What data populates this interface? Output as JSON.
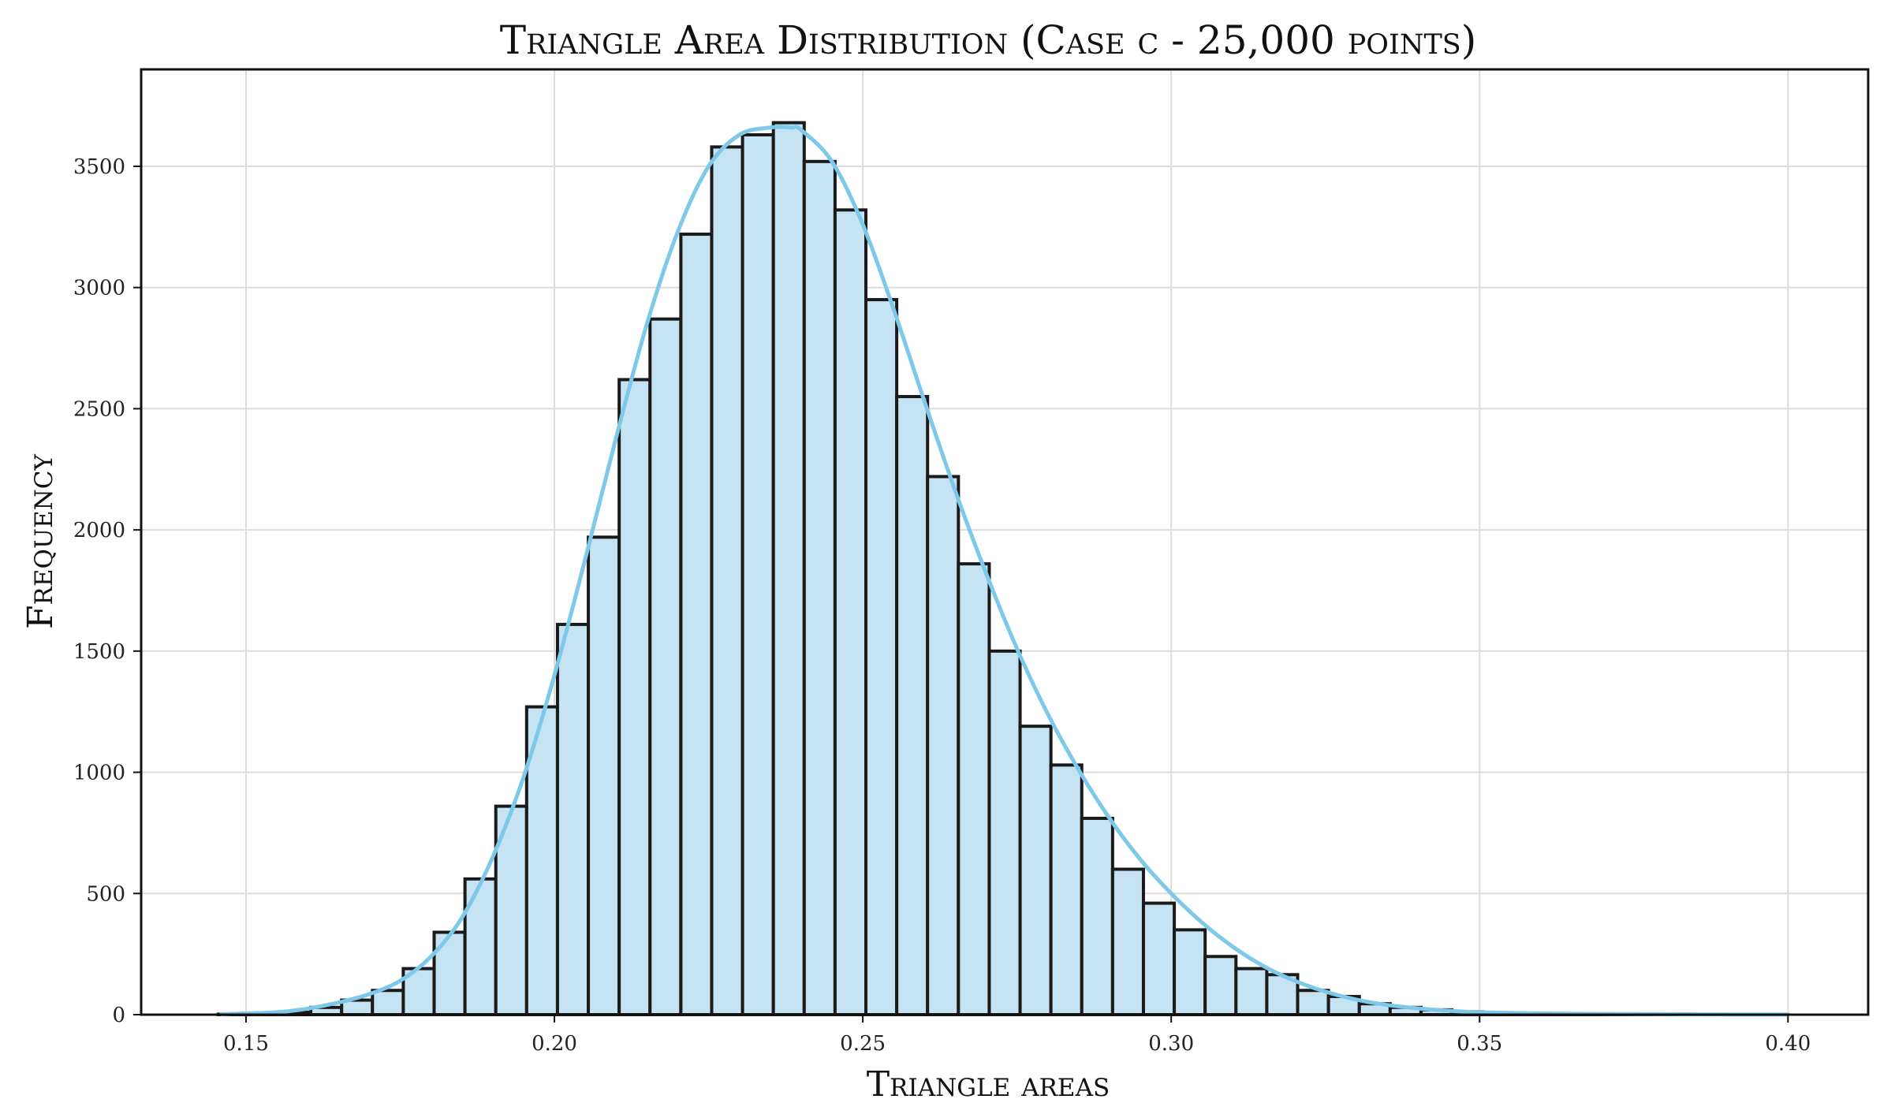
{
  "chart_data": {
    "type": "bar",
    "title": "Triangle Area Distribution (Case c - 25,000 points)",
    "xlabel": "Triangle areas",
    "ylabel": "Frequency",
    "xlim": [
      0.133,
      0.413
    ],
    "ylim": [
      0,
      3900
    ],
    "xticks": [
      0.15,
      0.2,
      0.25,
      0.3,
      0.35,
      0.4
    ],
    "xtick_labels": [
      "0.15",
      "0.20",
      "0.25",
      "0.30",
      "0.35",
      "0.40"
    ],
    "yticks": [
      0,
      500,
      1000,
      1500,
      2000,
      2500,
      3000,
      3500
    ],
    "ytick_labels": [
      "0",
      "500",
      "1000",
      "1500",
      "2000",
      "2500",
      "3000",
      "3500"
    ],
    "grid": true,
    "bin_start": 0.1455,
    "bin_width": 0.005,
    "values": [
      2,
      5,
      10,
      30,
      60,
      100,
      190,
      340,
      560,
      860,
      1270,
      1610,
      1970,
      2620,
      2870,
      3220,
      3580,
      3630,
      3680,
      3520,
      3320,
      2950,
      2550,
      2220,
      1860,
      1500,
      1190,
      1030,
      810,
      600,
      460,
      350,
      240,
      190,
      165,
      100,
      75,
      45,
      30,
      20,
      12,
      8,
      5,
      3,
      3,
      2,
      2,
      1,
      1,
      1
    ],
    "kde": {
      "name": "",
      "color": "#7ec8ea",
      "x": [
        0.146,
        0.155,
        0.16,
        0.165,
        0.17,
        0.175,
        0.18,
        0.185,
        0.19,
        0.195,
        0.2,
        0.205,
        0.21,
        0.215,
        0.22,
        0.225,
        0.23,
        0.235,
        0.2385,
        0.24,
        0.245,
        0.25,
        0.255,
        0.26,
        0.265,
        0.27,
        0.275,
        0.28,
        0.285,
        0.29,
        0.295,
        0.3,
        0.305,
        0.31,
        0.315,
        0.32,
        0.325,
        0.33,
        0.335,
        0.34,
        0.345,
        0.35,
        0.36,
        0.37,
        0.38,
        0.39,
        0.4
      ],
      "y": [
        2,
        10,
        25,
        50,
        85,
        140,
        240,
        400,
        650,
        980,
        1400,
        1880,
        2380,
        2850,
        3230,
        3500,
        3630,
        3660,
        3660,
        3650,
        3520,
        3260,
        2910,
        2530,
        2160,
        1820,
        1510,
        1240,
        1010,
        810,
        640,
        500,
        380,
        280,
        200,
        140,
        95,
        62,
        40,
        26,
        16,
        10,
        5,
        3,
        2,
        1,
        1
      ]
    },
    "colors": {
      "bar_fill": "#c5e3f3",
      "bar_edge": "#1a1a1a",
      "kde_line": "#7ec8ea"
    }
  }
}
